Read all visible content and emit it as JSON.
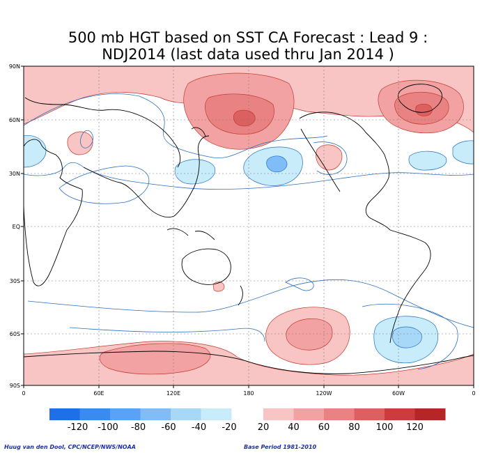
{
  "title_line1": "500 mb HGT based on SST CA Forecast : Lead 9 :",
  "title_line2": "NDJ2014 (last data used thru Jan 2014 )",
  "lat_labels": [
    "90N",
    "60N",
    "30N",
    "EQ",
    "30S",
    "60S",
    "90S"
  ],
  "lon_labels": [
    "0",
    "60E",
    "120E",
    "180",
    "120W",
    "60W",
    "0"
  ],
  "colorbar": {
    "labels": [
      "-120",
      "-100",
      "-80",
      "-60",
      "-40",
      "-20",
      "20",
      "40",
      "60",
      "80",
      "100",
      "120"
    ],
    "negative_colors": [
      "#1f6fe8",
      "#3a8af0",
      "#5aa2f4",
      "#80bdf7",
      "#a8d8f8",
      "#c8ecfa"
    ],
    "positive_colors": [
      "#f9c4c4",
      "#f2a2a2",
      "#e98383",
      "#dd6060",
      "#cc3c3c",
      "#b52626"
    ]
  },
  "credit_left": "Huug van den Dool, CPC/NCEP/NWS/NOAA",
  "credit_right": "Base Period 1981-2010"
}
